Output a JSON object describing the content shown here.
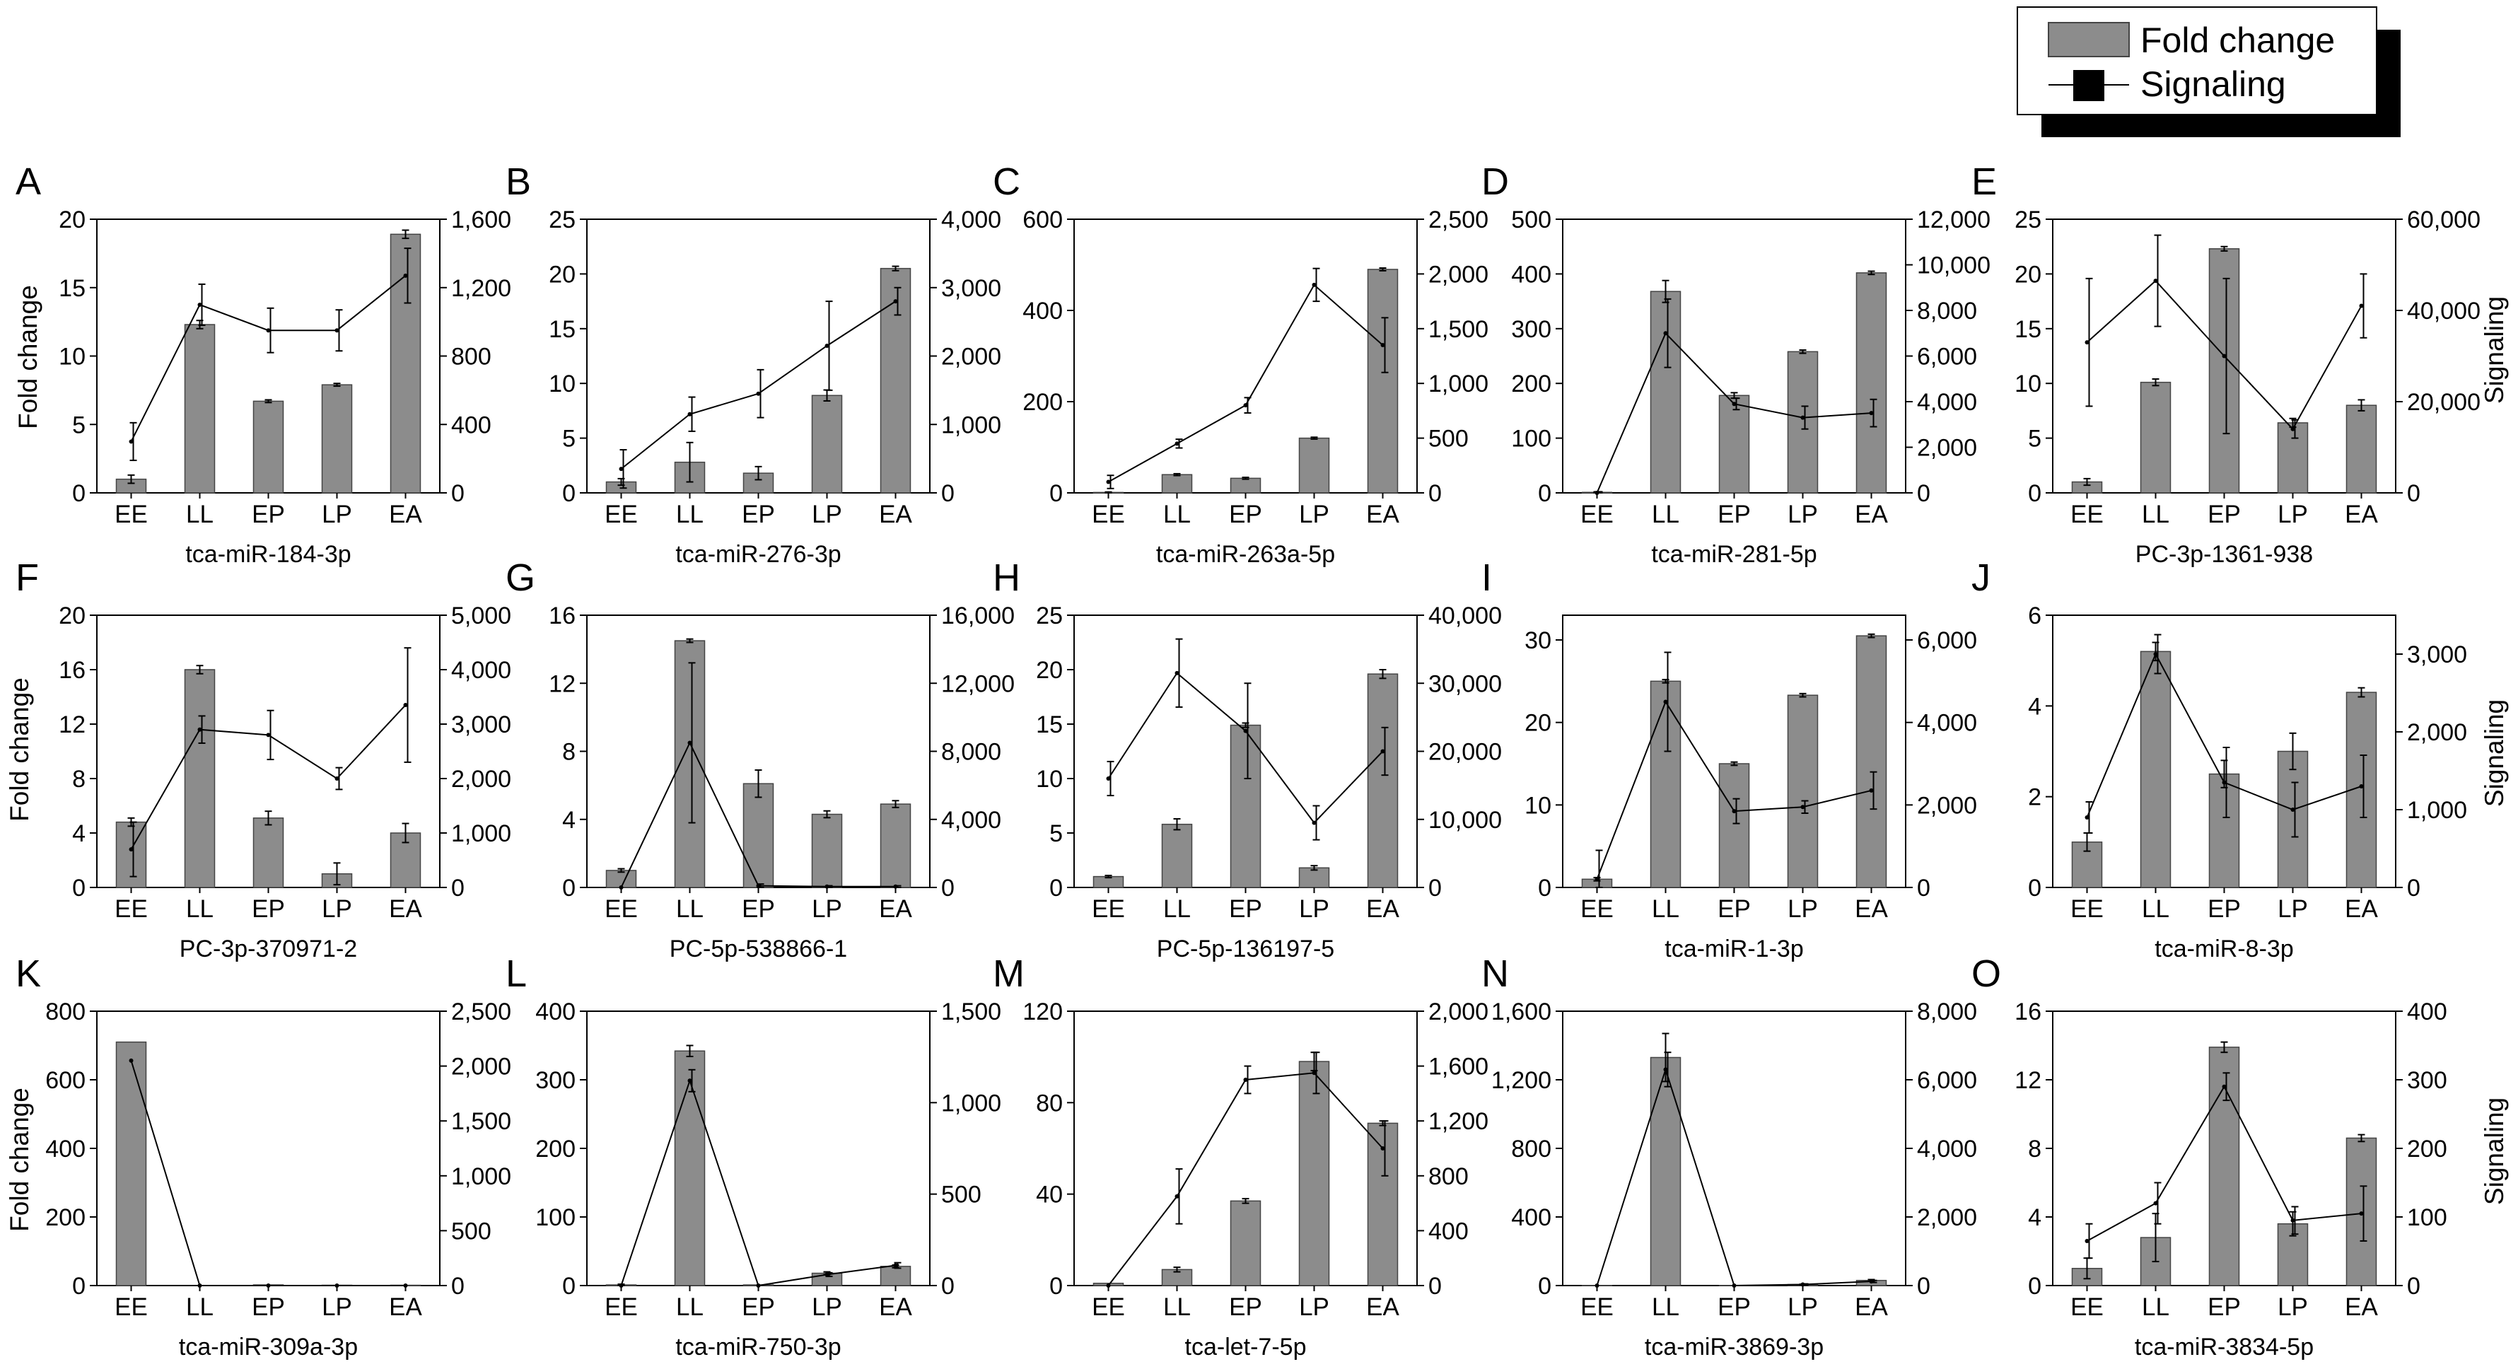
{
  "legend": {
    "fold_change": "Fold change",
    "signaling": "Signaling"
  },
  "labels": {
    "left_axis": "Fold change",
    "right_axis": "Signaling"
  },
  "colors": {
    "bar": "#8c8c8c",
    "bar_edge": "#444444",
    "line": "#000000"
  },
  "chart_data": [
    {
      "panel": "A",
      "type": "bar+line",
      "title": "tca-miR-184-3p",
      "categories": [
        "EE",
        "LL",
        "EP",
        "LP",
        "EA"
      ],
      "left": {
        "ticks": [
          "0",
          "5",
          "10",
          "15",
          "20"
        ],
        "max": 20
      },
      "right": {
        "ticks": [
          "0",
          "400",
          "800",
          "1,200",
          "1,600"
        ],
        "max": 1600
      },
      "fold": [
        1.0,
        12.3,
        6.7,
        7.9,
        18.9
      ],
      "fold_err": [
        0.3,
        0.3,
        0.1,
        0.1,
        0.3
      ],
      "signal": [
        300,
        1100,
        950,
        950,
        1270
      ],
      "signal_err": [
        110,
        120,
        130,
        120,
        160
      ]
    },
    {
      "panel": "B",
      "type": "bar+line",
      "title": "tca-miR-276-3p",
      "categories": [
        "EE",
        "LL",
        "EP",
        "LP",
        "EA"
      ],
      "left": {
        "ticks": [
          "0",
          "5",
          "10",
          "15",
          "20",
          "25"
        ],
        "max": 25
      },
      "right": {
        "ticks": [
          "0",
          "1,000",
          "2,000",
          "3,000",
          "4,000"
        ],
        "max": 4000
      },
      "fold": [
        1.0,
        2.8,
        1.8,
        8.9,
        20.5
      ],
      "fold_err": [
        0.3,
        1.8,
        0.6,
        0.5,
        0.2
      ],
      "signal": [
        350,
        1150,
        1450,
        2150,
        2800
      ],
      "signal_err": [
        280,
        250,
        350,
        650,
        200
      ]
    },
    {
      "panel": "C",
      "type": "bar+line",
      "title": "tca-miR-263a-5p",
      "categories": [
        "EE",
        "LL",
        "EP",
        "LP",
        "EA"
      ],
      "left": {
        "ticks": [
          "0",
          "200",
          "400",
          "600"
        ],
        "max": 600
      },
      "right": {
        "ticks": [
          "0",
          "500",
          "1,000",
          "1,500",
          "2,000",
          "2,500"
        ],
        "max": 2500
      },
      "fold": [
        1,
        40,
        32,
        120,
        490
      ],
      "fold_err": [
        1,
        2,
        2,
        2,
        3
      ],
      "signal": [
        100,
        450,
        800,
        1900,
        1350
      ],
      "signal_err": [
        60,
        40,
        70,
        150,
        250
      ]
    },
    {
      "panel": "D",
      "type": "bar+line",
      "title": "tca-miR-281-5p",
      "categories": [
        "EE",
        "LL",
        "EP",
        "LP",
        "EA"
      ],
      "left": {
        "ticks": [
          "0",
          "100",
          "200",
          "300",
          "400",
          "500"
        ],
        "max": 500
      },
      "right": {
        "ticks": [
          "0",
          "2,000",
          "4,000",
          "6,000",
          "8,000",
          "10,000",
          "12,000"
        ],
        "max": 12000
      },
      "fold": [
        1,
        368,
        178,
        258,
        402
      ],
      "fold_err": [
        1,
        20,
        5,
        3,
        3
      ],
      "signal": [
        0,
        7000,
        3900,
        3300,
        3500
      ],
      "signal_err": [
        50,
        1500,
        250,
        500,
        600
      ]
    },
    {
      "panel": "E",
      "type": "bar+line",
      "title": "PC-3p-1361-938",
      "categories": [
        "EE",
        "LL",
        "EP",
        "LP",
        "EA"
      ],
      "left": {
        "ticks": [
          "0",
          "5",
          "10",
          "15",
          "20",
          "25"
        ],
        "max": 25
      },
      "right": {
        "ticks": [
          "0",
          "20,000",
          "40,000",
          "60,000"
        ],
        "max": 60000
      },
      "fold": [
        1.0,
        10.1,
        22.3,
        6.4,
        8.0
      ],
      "fold_err": [
        0.3,
        0.3,
        0.2,
        0.4,
        0.5
      ],
      "signal": [
        33000,
        46500,
        30000,
        14000,
        41000
      ],
      "signal_err": [
        14000,
        10000,
        17000,
        2000,
        7000
      ]
    },
    {
      "panel": "F",
      "type": "bar+line",
      "title": "PC-3p-370971-2",
      "categories": [
        "EE",
        "LL",
        "EP",
        "LP",
        "EA"
      ],
      "left": {
        "ticks": [
          "0",
          "4",
          "8",
          "12",
          "16",
          "20"
        ],
        "max": 20
      },
      "right": {
        "ticks": [
          "0",
          "1,000",
          "2,000",
          "3,000",
          "4,000",
          "5,000"
        ],
        "max": 5000
      },
      "fold": [
        4.8,
        16.0,
        5.1,
        1.0,
        4.0
      ],
      "fold_err": [
        0.3,
        0.3,
        0.5,
        0.8,
        0.7
      ],
      "signal": [
        700,
        2900,
        2800,
        2000,
        3350
      ],
      "signal_err": [
        500,
        250,
        450,
        200,
        1050
      ]
    },
    {
      "panel": "G",
      "type": "bar+line",
      "title": "PC-5p-538866-1",
      "categories": [
        "EE",
        "LL",
        "EP",
        "LP",
        "EA"
      ],
      "left": {
        "ticks": [
          "0",
          "4",
          "8",
          "12",
          "16"
        ],
        "max": 16
      },
      "right": {
        "ticks": [
          "0",
          "4,000",
          "8,000",
          "12,000",
          "16,000"
        ],
        "max": 16000
      },
      "fold": [
        1.0,
        14.5,
        6.1,
        4.3,
        4.9
      ],
      "fold_err": [
        0.1,
        0.1,
        0.8,
        0.2,
        0.2
      ],
      "signal": [
        0,
        8500,
        100,
        50,
        50
      ],
      "signal_err": [
        0,
        4700,
        100,
        50,
        50
      ]
    },
    {
      "panel": "H",
      "type": "bar+line",
      "title": "PC-5p-136197-5",
      "categories": [
        "EE",
        "LL",
        "EP",
        "LP",
        "EA"
      ],
      "left": {
        "ticks": [
          "0",
          "5",
          "10",
          "15",
          "20",
          "25"
        ],
        "max": 25
      },
      "right": {
        "ticks": [
          "0",
          "10,000",
          "20,000",
          "30,000",
          "40,000"
        ],
        "max": 40000
      },
      "fold": [
        1.0,
        5.8,
        14.9,
        1.8,
        19.6
      ],
      "fold_err": [
        0.1,
        0.5,
        0.2,
        0.2,
        0.4
      ],
      "signal": [
        16000,
        31500,
        23000,
        9500,
        20000
      ],
      "signal_err": [
        2500,
        5000,
        7000,
        2500,
        3500
      ]
    },
    {
      "panel": "I",
      "type": "bar+line",
      "title": "tca-miR-1-3p",
      "categories": [
        "EE",
        "LL",
        "EP",
        "LP",
        "EA"
      ],
      "left": {
        "ticks": [
          "0",
          "10",
          "20",
          "30"
        ],
        "max": 33
      },
      "right": {
        "ticks": [
          "0",
          "2,000",
          "4,000",
          "6,000"
        ],
        "max": 6600
      },
      "fold": [
        1.0,
        25.0,
        15.0,
        23.3,
        30.5
      ],
      "fold_err": [
        0.2,
        0.2,
        0.2,
        0.2,
        0.2
      ],
      "signal": [
        200,
        4500,
        1850,
        1950,
        2350
      ],
      "signal_err": [
        700,
        1200,
        300,
        150,
        450
      ]
    },
    {
      "panel": "J",
      "type": "bar+line",
      "title": "tca-miR-8-3p",
      "categories": [
        "EE",
        "LL",
        "EP",
        "LP",
        "EA"
      ],
      "left": {
        "ticks": [
          "0",
          "2",
          "4",
          "6"
        ],
        "max": 6
      },
      "right": {
        "ticks": [
          "0",
          "1,000",
          "2,000",
          "3,000"
        ],
        "max": 3500
      },
      "fold": [
        1.0,
        5.2,
        2.5,
        3.0,
        4.3
      ],
      "fold_err": [
        0.2,
        0.2,
        0.3,
        0.4,
        0.1
      ],
      "signal": [
        900,
        3000,
        1350,
        1000,
        1300
      ],
      "signal_err": [
        200,
        250,
        450,
        350,
        400
      ]
    },
    {
      "panel": "K",
      "type": "bar+line",
      "title": "tca-miR-309a-3p",
      "categories": [
        "EE",
        "LL",
        "EP",
        "LP",
        "EA"
      ],
      "left": {
        "ticks": [
          "0",
          "200",
          "400",
          "600",
          "800"
        ],
        "max": 800
      },
      "right": {
        "ticks": [
          "0",
          "500",
          "1,000",
          "1,500",
          "2,000",
          "2,500"
        ],
        "max": 2500
      },
      "fold": [
        710,
        0,
        2,
        1,
        1
      ],
      "fold_err": [
        0,
        0,
        0,
        0,
        0
      ],
      "signal": [
        2050,
        0,
        0,
        0,
        0
      ],
      "signal_err": [
        0,
        0,
        0,
        0,
        0
      ]
    },
    {
      "panel": "L",
      "type": "bar+line",
      "title": "tca-miR-750-3p",
      "categories": [
        "EE",
        "LL",
        "EP",
        "LP",
        "EA"
      ],
      "left": {
        "ticks": [
          "0",
          "100",
          "200",
          "300",
          "400"
        ],
        "max": 400
      },
      "right": {
        "ticks": [
          "0",
          "500",
          "1,000",
          "1,500"
        ],
        "max": 1500
      },
      "fold": [
        1,
        342,
        1,
        18,
        28
      ],
      "fold_err": [
        1,
        8,
        0,
        2,
        2
      ],
      "signal": [
        0,
        1120,
        0,
        60,
        110
      ],
      "signal_err": [
        0,
        60,
        0,
        10,
        15
      ]
    },
    {
      "panel": "M",
      "type": "bar+line",
      "title": "tca-let-7-5p",
      "categories": [
        "EE",
        "LL",
        "EP",
        "LP",
        "EA"
      ],
      "left": {
        "ticks": [
          "0",
          "40",
          "80",
          "120"
        ],
        "max": 120
      },
      "right": {
        "ticks": [
          "0",
          "400",
          "800",
          "1,200",
          "1,600",
          "2,000"
        ],
        "max": 2000
      },
      "fold": [
        1,
        7,
        37,
        98,
        71
      ],
      "fold_err": [
        0,
        1,
        1,
        4,
        1
      ],
      "signal": [
        0,
        650,
        1500,
        1550,
        1000
      ],
      "signal_err": [
        0,
        200,
        100,
        150,
        200
      ]
    },
    {
      "panel": "N",
      "type": "bar+line",
      "title": "tca-miR-3869-3p",
      "categories": [
        "EE",
        "LL",
        "EP",
        "LP",
        "EA"
      ],
      "left": {
        "ticks": [
          "0",
          "400",
          "800",
          "1,200",
          "1,600"
        ],
        "max": 1600
      },
      "right": {
        "ticks": [
          "0",
          "2,000",
          "4,000",
          "6,000",
          "8,000"
        ],
        "max": 8000
      },
      "fold": [
        1,
        1330,
        1,
        6,
        30
      ],
      "fold_err": [
        0,
        140,
        0,
        2,
        5
      ],
      "signal": [
        0,
        6300,
        0,
        30,
        120
      ],
      "signal_err": [
        0,
        500,
        0,
        20,
        30
      ]
    },
    {
      "panel": "O",
      "type": "bar+line",
      "title": "tca-miR-3834-5p",
      "categories": [
        "EE",
        "LL",
        "EP",
        "LP",
        "EA"
      ],
      "left": {
        "ticks": [
          "0",
          "4",
          "8",
          "12",
          "16"
        ],
        "max": 16
      },
      "right": {
        "ticks": [
          "0",
          "100",
          "200",
          "300",
          "400"
        ],
        "max": 400
      },
      "fold": [
        1.0,
        2.8,
        13.9,
        3.6,
        8.6
      ],
      "fold_err": [
        0.6,
        1.4,
        0.3,
        0.7,
        0.2
      ],
      "signal": [
        65,
        120,
        290,
        95,
        105
      ],
      "signal_err": [
        25,
        30,
        20,
        20,
        40
      ]
    }
  ]
}
